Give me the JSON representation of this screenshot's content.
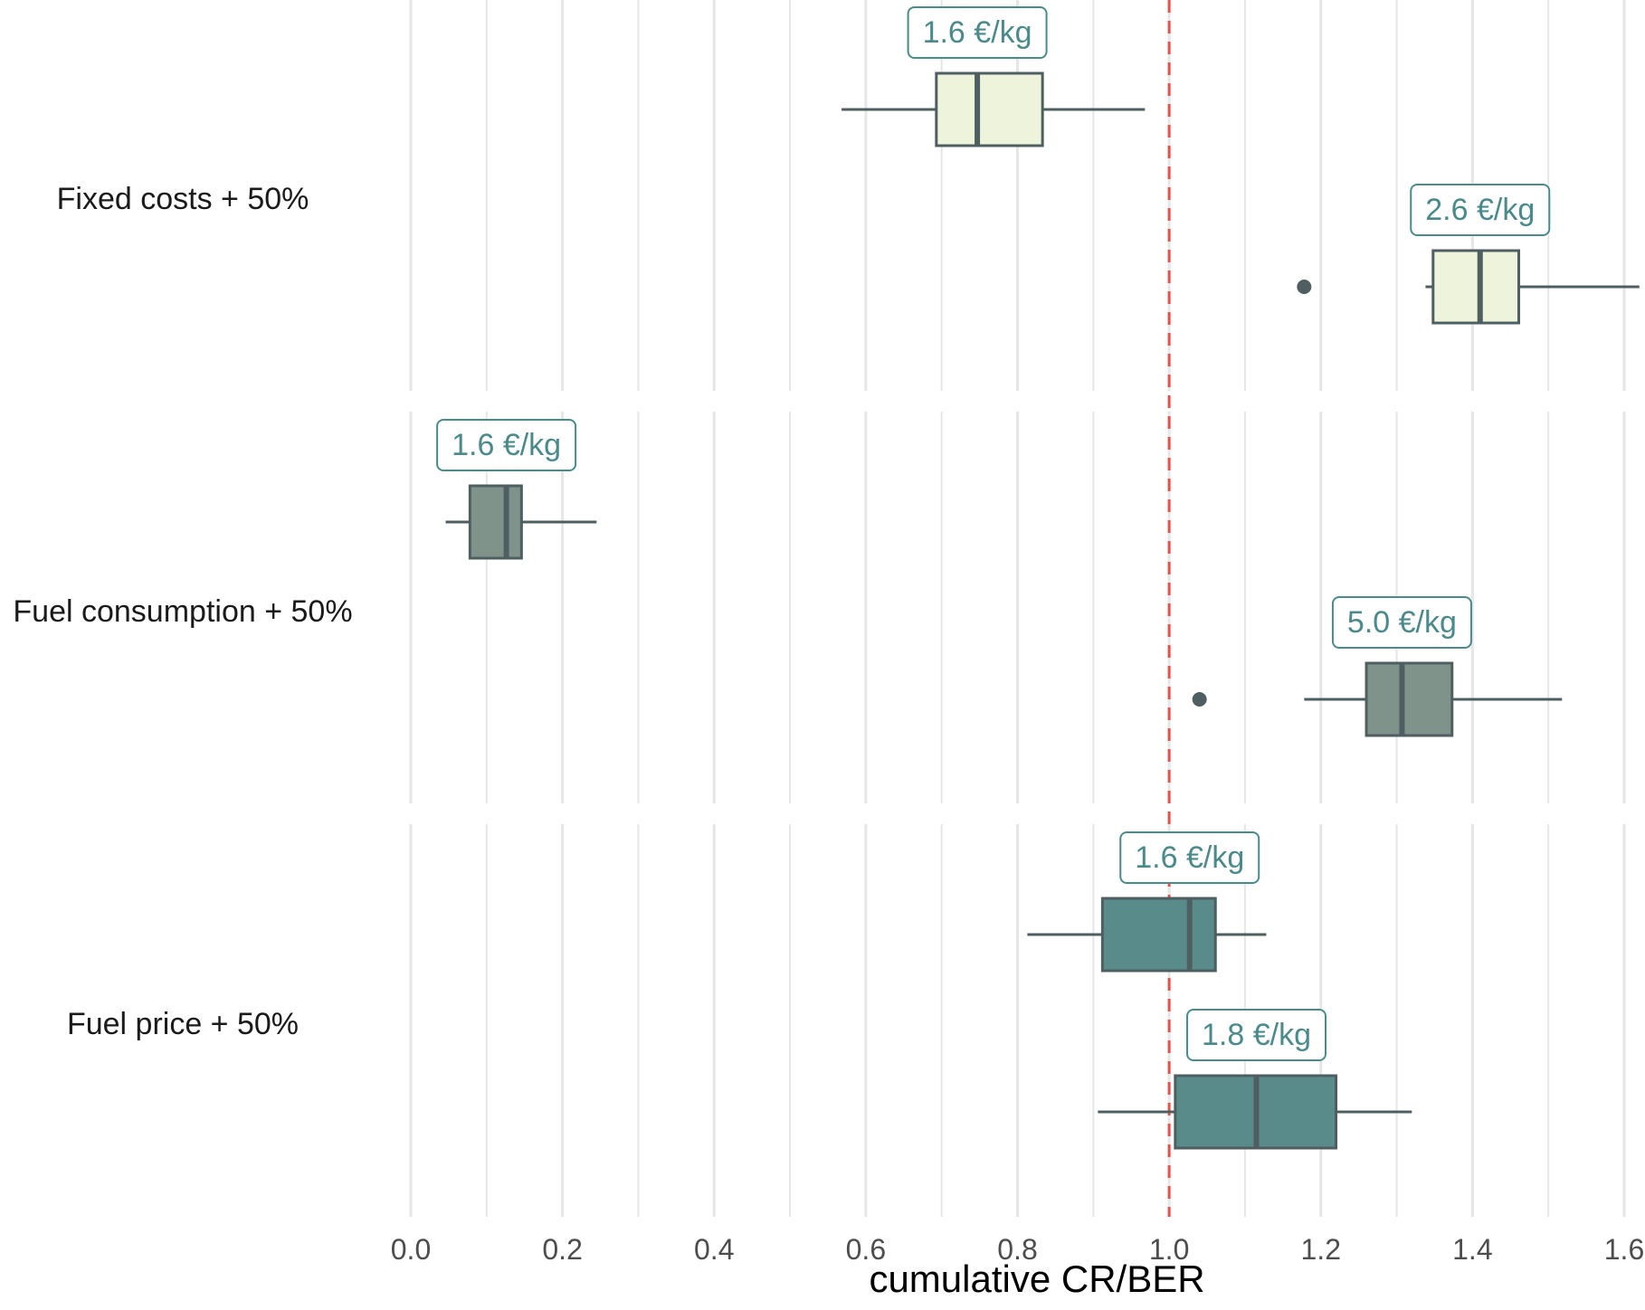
{
  "chart_data": {
    "type": "boxplot",
    "orientation": "horizontal",
    "xlabel": "cumulative CR/BER",
    "xlim": [
      0.0,
      1.6
    ],
    "x_ticks": [
      "0.0",
      "0.2",
      "0.4",
      "0.6",
      "0.8",
      "1.0",
      "1.2",
      "1.4",
      "1.6"
    ],
    "reference_line": {
      "x": 1.0,
      "style": "dashed",
      "color": "#e8504a"
    },
    "colors": {
      "fixed_costs": "#eef4dc",
      "fuel_consumption": "#7f938b",
      "fuel_price": "#588b8a",
      "box_outline": "#4f5f61",
      "label_text": "#4a8a8a",
      "grid": "#e6e6e6"
    },
    "panels": [
      {
        "label": "Fixed costs + 50%",
        "fill_key": "fixed_costs",
        "boxes": [
          {
            "price_label": "1.6 €/kg",
            "whisker_low": 0.568,
            "q1": 0.693,
            "median": 0.747,
            "q3": 0.833,
            "whisker_high": 0.968,
            "outliers": []
          },
          {
            "price_label": "2.6 €/kg",
            "whisker_low": 1.338,
            "q1": 1.348,
            "median": 1.41,
            "q3": 1.461,
            "whisker_high": 1.62,
            "outliers": [
              1.178
            ]
          }
        ]
      },
      {
        "label": "Fuel consumption + 50%",
        "fill_key": "fuel_consumption",
        "boxes": [
          {
            "price_label": "1.6 €/kg",
            "whisker_low": 0.046,
            "q1": 0.078,
            "median": 0.126,
            "q3": 0.146,
            "whisker_high": 0.245,
            "outliers": []
          },
          {
            "price_label": "5.0 €/kg",
            "whisker_low": 1.178,
            "q1": 1.26,
            "median": 1.307,
            "q3": 1.373,
            "whisker_high": 1.518,
            "outliers": [
              1.04
            ]
          }
        ]
      },
      {
        "label": "Fuel price + 50%",
        "fill_key": "fuel_price",
        "boxes": [
          {
            "price_label": "1.6 €/kg",
            "whisker_low": 0.813,
            "q1": 0.912,
            "median": 1.027,
            "q3": 1.061,
            "whisker_high": 1.128,
            "outliers": []
          },
          {
            "price_label": "1.8 €/kg",
            "whisker_low": 0.906,
            "q1": 1.008,
            "median": 1.115,
            "q3": 1.22,
            "whisker_high": 1.32,
            "outliers": []
          }
        ]
      }
    ]
  }
}
